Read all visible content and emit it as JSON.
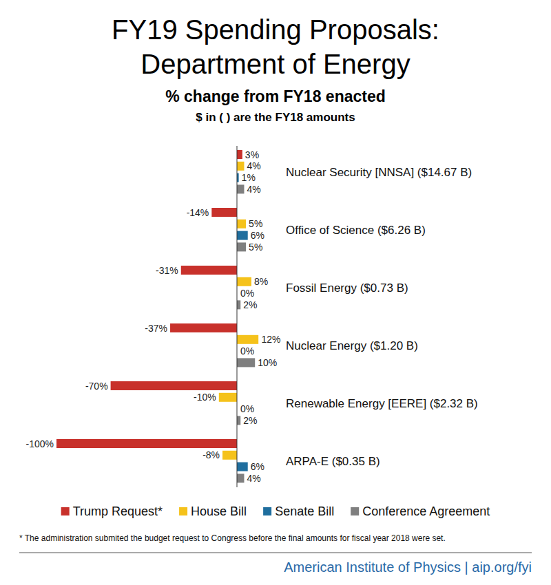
{
  "chart_data": {
    "type": "bar",
    "orientation": "horizontal",
    "title": "FY19 Spending Proposals: Department of Energy",
    "subtitle": "% change from FY18 enacted",
    "note": "$ in ( ) are the FY18 amounts",
    "footnote": "* The administration submited the budget request to Congress before the final amounts for fiscal year 2018 were set.",
    "source": "American Institute of Physics | aip.org/fyi",
    "categories": [
      "Nuclear Security [NNSA] ($14.67 B)",
      "Office of Science ($6.26 B)",
      "Fossil Energy ($0.73 B)",
      "Nuclear Energy ($1.20 B)",
      "Renewable Energy [EERE] ($2.32 B)",
      "ARPA-E ($0.35 B)"
    ],
    "series": [
      {
        "name": "Trump Request*",
        "color": "#c8312b",
        "values": [
          3,
          -14,
          -31,
          -37,
          -70,
          -100
        ],
        "value_labels": [
          "3%",
          "-14%",
          "-31%",
          "-37%",
          "-70%",
          "-100%"
        ]
      },
      {
        "name": "House Bill",
        "color": "#f5c21b",
        "values": [
          4,
          5,
          8,
          12,
          -10,
          -8
        ],
        "value_labels": [
          "4%",
          "5%",
          "8%",
          "12%",
          "-10%",
          "-8%"
        ]
      },
      {
        "name": "Senate Bill",
        "color": "#1f6e9e",
        "values": [
          1,
          6,
          0,
          0,
          0,
          6
        ],
        "value_labels": [
          "1%",
          "6%",
          "0%",
          "0%",
          "0%",
          "6%"
        ]
      },
      {
        "name": "Conference Agreement",
        "color": "#7f7f7f",
        "values": [
          4,
          5,
          2,
          10,
          2,
          4
        ],
        "value_labels": [
          "4%",
          "5%",
          "2%",
          "10%",
          "2%",
          "4%"
        ]
      }
    ],
    "xlim": [
      -100,
      12
    ],
    "tick_labels": false,
    "grid": false,
    "data_labels": true,
    "legend": "bottom"
  }
}
